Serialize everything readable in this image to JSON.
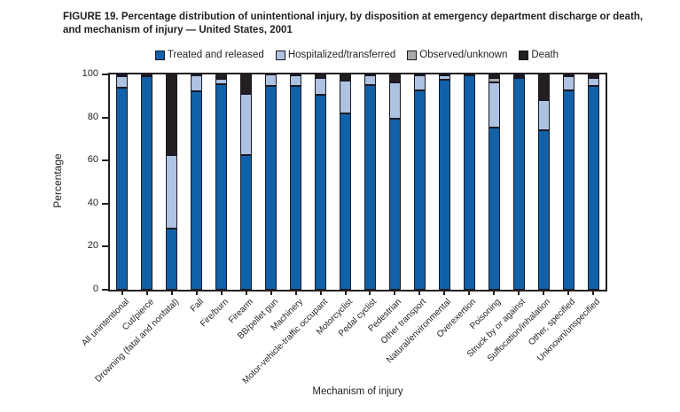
{
  "figure": {
    "title": "FIGURE 19. Percentage distribution of unintentional injury, by disposition at emergency department discharge or death, and mechanism of injury — United States, 2001"
  },
  "chart_data": {
    "type": "bar",
    "stacked": true,
    "title": "FIGURE 19. Percentage distribution of unintentional injury, by disposition at emergency department discharge or death, and mechanism of injury — United States, 2001",
    "xlabel": "Mechanism of injury",
    "ylabel": "Percentage",
    "ylim": [
      0,
      100
    ],
    "yticks": [
      0,
      20,
      40,
      60,
      80,
      100
    ],
    "grid": false,
    "legend_position": "top",
    "categories": [
      "All unintentional",
      "Cut/pierce",
      "Drowning (fatal and nonfatal)",
      "Fall",
      "Fire/burn",
      "Firearm",
      "BB/pellet gun",
      "Machinery",
      "Motor-vehicle-traffic occupant",
      "Motorcyclist",
      "Pedal cyclist",
      "Pedestrian",
      "Other transport",
      "Natural/environmental",
      "Overexertion",
      "Poisoning",
      "Struck by or against",
      "Suffocation/inhalation",
      "Other, specified",
      "Unknown/unspecified"
    ],
    "series": [
      {
        "name": "Treated and released",
        "color": "#1161A9",
        "values": [
          94,
          99,
          28.5,
          92,
          95.5,
          62.5,
          94.5,
          94.5,
          90.5,
          82,
          95,
          79.5,
          92.5,
          97.5,
          99.5,
          75.5,
          98.5,
          74,
          92.5,
          94.5
        ]
      },
      {
        "name": "Hospitalized/transferred",
        "color": "#AEC2E2",
        "values": [
          5,
          1,
          34,
          7.5,
          2.5,
          28.5,
          5.5,
          5,
          8,
          15,
          4.5,
          17,
          7,
          2,
          0.5,
          21,
          0.5,
          14,
          6.5,
          4
        ]
      },
      {
        "name": "Observed/unknown",
        "color": "#A9A9A9",
        "values": [
          0.5,
          0,
          0,
          0,
          0,
          0,
          0,
          0,
          0,
          0,
          0,
          0,
          0,
          0.5,
          0,
          2,
          0.5,
          0,
          0,
          0
        ]
      },
      {
        "name": "Death",
        "color": "#231F20",
        "values": [
          0.5,
          0,
          37.5,
          0.5,
          2,
          9,
          0,
          0.5,
          1.5,
          3,
          0.5,
          3.5,
          0.5,
          0,
          0,
          1.5,
          0.5,
          12,
          1,
          1.5
        ]
      }
    ]
  }
}
